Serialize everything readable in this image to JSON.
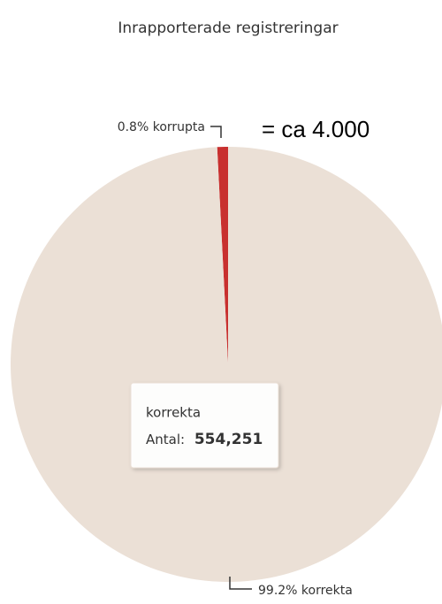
{
  "chart_data": {
    "type": "pie",
    "title": "Inrapporterade registreringar",
    "categories": [
      "korrupta",
      "korrekta"
    ],
    "values": [
      0.8,
      99.2
    ],
    "value_labels": [
      "0.8% korrupta",
      "99.2% korrekta"
    ],
    "colors": [
      "#c8302f",
      "#ebe0d6"
    ],
    "annotation": "= ca 4.000",
    "tooltip": {
      "label": "Antal:",
      "value": "554,251"
    }
  }
}
